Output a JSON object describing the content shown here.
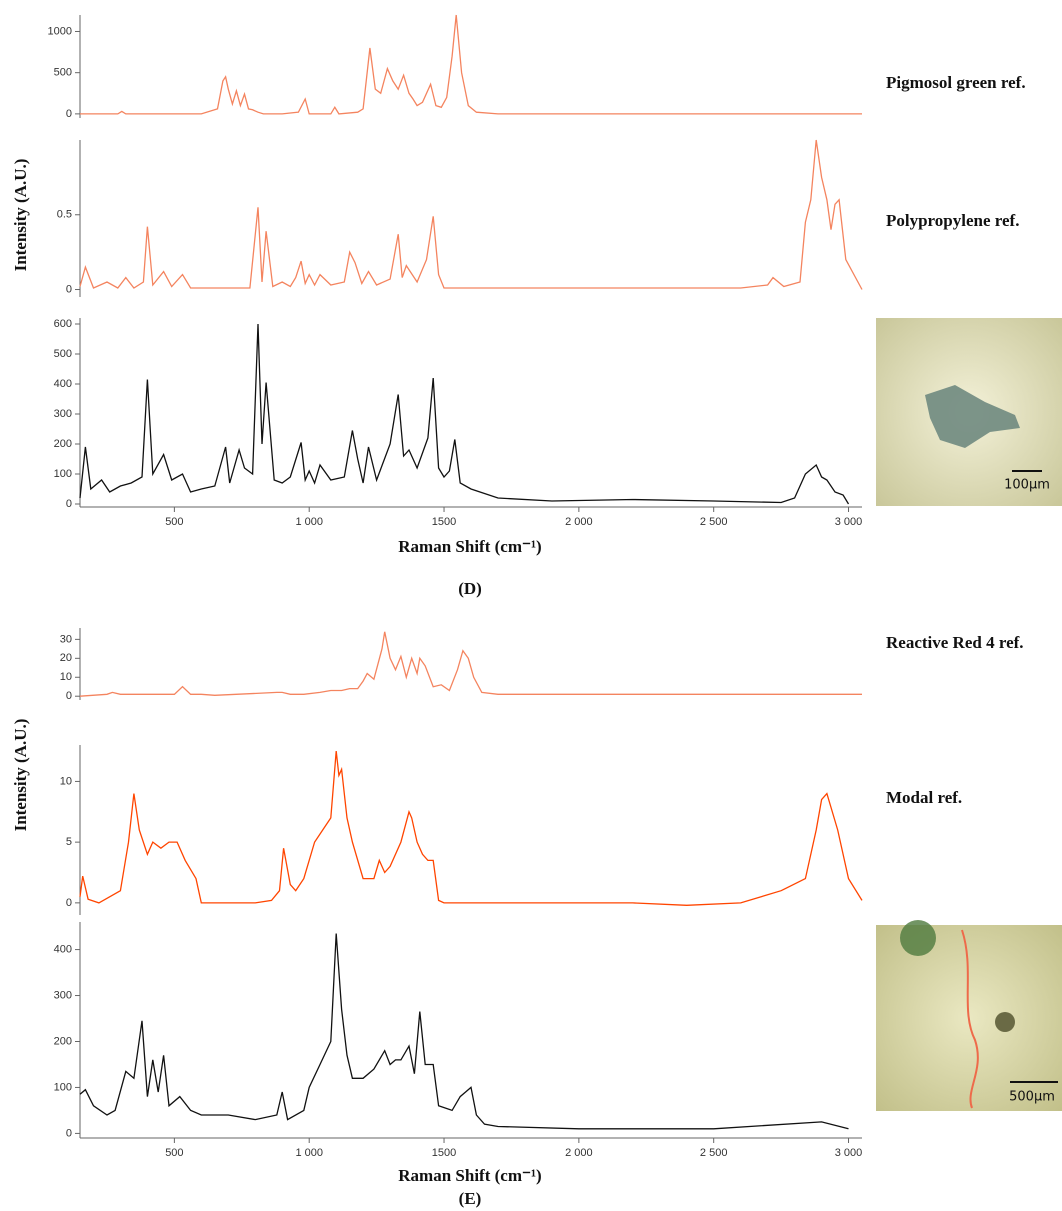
{
  "chart_data": [
    {
      "type": "line",
      "label": "Pigmosol green ref.",
      "color": "#f4845f",
      "xlim": [
        150,
        3050
      ],
      "ylim": [
        -50,
        1200
      ],
      "yticks": [
        0,
        500,
        1000
      ],
      "x": [
        150,
        290,
        305,
        320,
        600,
        660,
        680,
        690,
        700,
        715,
        730,
        745,
        760,
        775,
        790,
        810,
        830,
        900,
        960,
        985,
        1000,
        1080,
        1095,
        1110,
        1180,
        1200,
        1225,
        1245,
        1265,
        1290,
        1310,
        1330,
        1350,
        1370,
        1385,
        1400,
        1420,
        1450,
        1470,
        1490,
        1510,
        1530,
        1545,
        1565,
        1590,
        1620,
        1700,
        3050
      ],
      "values": [
        0,
        0,
        30,
        0,
        0,
        60,
        400,
        450,
        300,
        120,
        280,
        100,
        240,
        60,
        50,
        20,
        0,
        0,
        20,
        180,
        0,
        0,
        80,
        0,
        20,
        60,
        800,
        300,
        250,
        550,
        400,
        300,
        470,
        250,
        180,
        100,
        140,
        360,
        100,
        80,
        200,
        700,
        1200,
        500,
        100,
        20,
        0,
        0
      ]
    },
    {
      "type": "line",
      "label": "Polypropylene ref.",
      "color": "#f4845f",
      "xlim": [
        150,
        3050
      ],
      "ylim": [
        -0.05,
        1.0
      ],
      "yticks": [
        0,
        0.5
      ],
      "x": [
        150,
        170,
        200,
        250,
        290,
        320,
        350,
        385,
        400,
        420,
        460,
        490,
        530,
        560,
        780,
        810,
        825,
        840,
        865,
        900,
        930,
        950,
        970,
        985,
        1000,
        1020,
        1040,
        1080,
        1130,
        1150,
        1170,
        1195,
        1220,
        1250,
        1300,
        1330,
        1345,
        1360,
        1400,
        1435,
        1460,
        1480,
        1500,
        2600,
        2700,
        2720,
        2760,
        2820,
        2840,
        2860,
        2880,
        2900,
        2920,
        2935,
        2950,
        2965,
        2990,
        3050
      ],
      "values": [
        0.02,
        0.15,
        0.01,
        0.05,
        0.01,
        0.08,
        0.01,
        0.05,
        0.42,
        0.03,
        0.12,
        0.02,
        0.1,
        0.01,
        0.01,
        0.55,
        0.05,
        0.39,
        0.02,
        0.05,
        0.02,
        0.08,
        0.19,
        0.04,
        0.1,
        0.03,
        0.1,
        0.03,
        0.05,
        0.25,
        0.18,
        0.04,
        0.12,
        0.03,
        0.07,
        0.37,
        0.08,
        0.16,
        0.05,
        0.2,
        0.49,
        0.1,
        0.01,
        0.01,
        0.03,
        0.08,
        0.02,
        0.05,
        0.45,
        0.6,
        1.0,
        0.75,
        0.6,
        0.4,
        0.57,
        0.6,
        0.2,
        0.0
      ]
    },
    {
      "type": "line",
      "color": "#111111",
      "xlim": [
        150,
        3050
      ],
      "ylim": [
        -10,
        620
      ],
      "yticks": [
        0,
        100,
        200,
        300,
        400,
        500,
        600
      ],
      "xticks": [
        500,
        {
          "value": 1000,
          "label": "1 000"
        },
        1500,
        {
          "value": 2000,
          "label": "2 000"
        },
        {
          "value": 2500,
          "label": "2 500"
        },
        {
          "value": 3000,
          "label": "3 000"
        }
      ],
      "x": [
        150,
        170,
        190,
        230,
        260,
        300,
        340,
        380,
        400,
        420,
        460,
        490,
        530,
        560,
        600,
        650,
        690,
        705,
        740,
        760,
        790,
        810,
        825,
        840,
        870,
        900,
        930,
        970,
        985,
        1000,
        1020,
        1040,
        1080,
        1130,
        1160,
        1180,
        1200,
        1220,
        1250,
        1300,
        1330,
        1350,
        1370,
        1400,
        1440,
        1460,
        1480,
        1500,
        1520,
        1540,
        1560,
        1600,
        1700,
        1900,
        2200,
        2500,
        2750,
        2800,
        2840,
        2880,
        2900,
        2920,
        2950,
        2980,
        3000
      ],
      "values": [
        20,
        190,
        50,
        80,
        40,
        60,
        70,
        90,
        415,
        100,
        165,
        80,
        100,
        40,
        50,
        60,
        190,
        70,
        180,
        120,
        100,
        600,
        200,
        405,
        80,
        70,
        90,
        205,
        80,
        110,
        70,
        130,
        80,
        90,
        245,
        150,
        70,
        190,
        80,
        200,
        365,
        160,
        180,
        120,
        220,
        420,
        120,
        90,
        110,
        215,
        70,
        50,
        20,
        10,
        15,
        10,
        5,
        20,
        100,
        130,
        90,
        80,
        40,
        30,
        0
      ]
    },
    {
      "type": "line",
      "label": "Reactive Red 4 ref.",
      "color": "#f4845f",
      "xlim": [
        150,
        3050
      ],
      "ylim": [
        -2,
        36
      ],
      "yticks": [
        0,
        10,
        20,
        30
      ],
      "x": [
        150,
        250,
        270,
        300,
        400,
        500,
        530,
        560,
        600,
        650,
        880,
        900,
        930,
        980,
        1040,
        1080,
        1120,
        1150,
        1180,
        1200,
        1215,
        1240,
        1270,
        1280,
        1300,
        1320,
        1340,
        1360,
        1380,
        1400,
        1410,
        1430,
        1460,
        1490,
        1520,
        1550,
        1570,
        1590,
        1610,
        1640,
        1700,
        3050
      ],
      "values": [
        0,
        1,
        2,
        1,
        1,
        1,
        5,
        1,
        1,
        0.5,
        2,
        2,
        1,
        1,
        2,
        3,
        3,
        4,
        4,
        8,
        12,
        9,
        25,
        34,
        20,
        14,
        21,
        10,
        20,
        12,
        20,
        16,
        5,
        6,
        3,
        14,
        24,
        20,
        10,
        2,
        1,
        1
      ]
    },
    {
      "type": "line",
      "label": "Modal ref.",
      "color": "#ff4500",
      "xlim": [
        150,
        3050
      ],
      "ylim": [
        -1,
        13
      ],
      "yticks": [
        0,
        5,
        10
      ],
      "x": [
        150,
        160,
        180,
        220,
        300,
        330,
        350,
        370,
        400,
        420,
        450,
        480,
        510,
        540,
        580,
        600,
        800,
        860,
        890,
        905,
        930,
        950,
        980,
        1020,
        1050,
        1080,
        1100,
        1110,
        1120,
        1140,
        1160,
        1200,
        1240,
        1260,
        1280,
        1300,
        1340,
        1370,
        1380,
        1400,
        1420,
        1440,
        1460,
        1480,
        1500,
        1800,
        2200,
        2400,
        2600,
        2750,
        2840,
        2880,
        2900,
        2920,
        2960,
        3000,
        3050
      ],
      "values": [
        0.5,
        2.2,
        0.3,
        0,
        1,
        5,
        9,
        6,
        4,
        5,
        4.5,
        5,
        5,
        3.5,
        2,
        0,
        0,
        0.2,
        1,
        4.5,
        1.5,
        1,
        2,
        5,
        6,
        7,
        12.5,
        10.5,
        11,
        7,
        5,
        2,
        2,
        3.5,
        2.5,
        3,
        5,
        7.5,
        7,
        5,
        4,
        3.5,
        3.5,
        0.2,
        0,
        0,
        0,
        -0.2,
        0,
        1,
        2,
        6,
        8.5,
        9,
        6,
        2,
        0.2
      ]
    },
    {
      "type": "line",
      "color": "#111111",
      "xlim": [
        150,
        3050
      ],
      "ylim": [
        -10,
        460
      ],
      "yticks": [
        0,
        100,
        200,
        300,
        400
      ],
      "xticks": [
        500,
        {
          "value": 1000,
          "label": "1 000"
        },
        1500,
        {
          "value": 2000,
          "label": "2 000"
        },
        {
          "value": 2500,
          "label": "2 500"
        },
        {
          "value": 3000,
          "label": "3 000"
        }
      ],
      "x": [
        150,
        170,
        200,
        250,
        280,
        320,
        350,
        380,
        400,
        420,
        440,
        460,
        480,
        520,
        560,
        600,
        700,
        800,
        880,
        900,
        920,
        980,
        1000,
        1040,
        1080,
        1100,
        1120,
        1140,
        1160,
        1200,
        1240,
        1280,
        1300,
        1320,
        1340,
        1370,
        1390,
        1410,
        1430,
        1460,
        1480,
        1530,
        1560,
        1580,
        1600,
        1620,
        1650,
        1700,
        2000,
        2500,
        2900,
        3000
      ],
      "values": [
        85,
        95,
        60,
        40,
        50,
        135,
        120,
        245,
        80,
        160,
        90,
        170,
        60,
        80,
        50,
        40,
        40,
        30,
        40,
        90,
        30,
        50,
        100,
        150,
        200,
        435,
        270,
        170,
        120,
        120,
        140,
        180,
        150,
        160,
        160,
        190,
        130,
        265,
        150,
        150,
        60,
        50,
        80,
        90,
        100,
        40,
        20,
        15,
        10,
        10,
        25,
        10
      ]
    }
  ],
  "panels": [
    {
      "label": "(D)",
      "y_label": "Intensity (A.U.)",
      "x_label": "Raman Shift (cm⁻¹)",
      "scale_bar": "100µm"
    },
    {
      "label": "(E)",
      "y_label": "Intensity (A.U.)",
      "x_label": "Raman Shift (cm⁻¹)",
      "scale_bar": "500µm"
    }
  ]
}
